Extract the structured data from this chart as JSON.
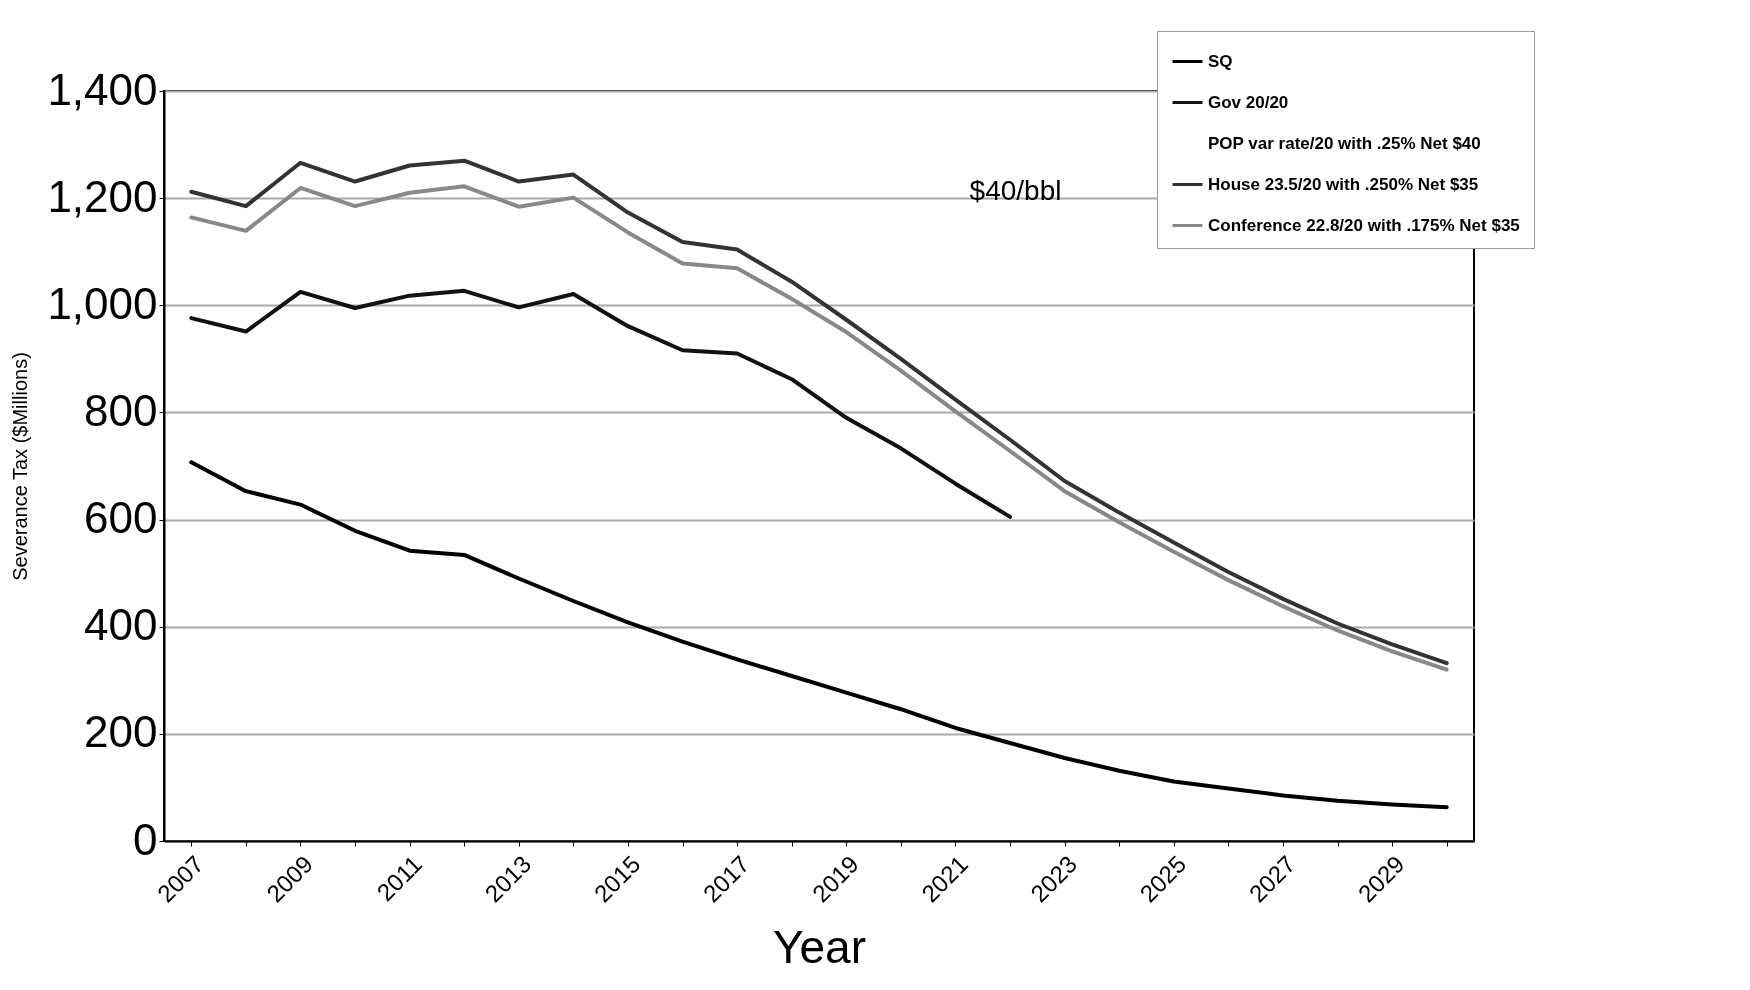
{
  "chart_data": {
    "type": "line",
    "xlabel": "Year",
    "ylabel": "Severance Tax ($Millions)",
    "annotations": [
      "$40/bbl"
    ],
    "categories": [
      "2007",
      null,
      "2009",
      null,
      "2011",
      null,
      "2013",
      null,
      "2015",
      null,
      "2017",
      null,
      "2019",
      null,
      "2021",
      null,
      "2023",
      null,
      "2025",
      null,
      "2027",
      null,
      "2029",
      null
    ],
    "series": [
      {
        "name": "SQ",
        "color": "#000000",
        "values": [
          707,
          653,
          628,
          579,
          542,
          534,
          490,
          448,
          408,
          372,
          339,
          308,
          277,
          246,
          211,
          183,
          155,
          131,
          111,
          98,
          85,
          75,
          68,
          63
        ]
      },
      {
        "name": "Gov 20/20",
        "color": "#111111",
        "values": [
          976,
          951,
          1025,
          995,
          1018,
          1027,
          996,
          1021,
          961,
          916,
          910,
          862,
          790,
          733,
          667,
          605,
          null,
          null,
          null,
          null,
          null,
          null,
          null,
          null
        ]
      },
      {
        "name": "POP var rate/20 with .25% Net $40",
        "values": [
          null,
          null,
          null,
          null,
          null,
          null,
          null,
          null,
          null,
          null,
          null,
          null,
          null,
          null,
          null,
          null,
          null,
          null,
          null,
          null,
          null,
          null,
          null,
          null
        ]
      },
      {
        "name": "House 23.5/20 with .250% Net $35",
        "color": "#333333",
        "values": [
          1212,
          1185,
          1266,
          1231,
          1261,
          1270,
          1231,
          1244,
          1173,
          1118,
          1104,
          1044,
          973,
          900,
          824,
          749,
          672,
          613,
          557,
          502,
          452,
          406,
          367,
          332
        ]
      },
      {
        "name": "Conference 22.8/20 with .175% Net $35",
        "color": "#888888",
        "values": [
          1164,
          1139,
          1219,
          1185,
          1210,
          1222,
          1184,
          1201,
          1136,
          1078,
          1069,
          1012,
          950,
          878,
          802,
          728,
          653,
          595,
          540,
          487,
          438,
          393,
          354,
          320
        ]
      }
    ],
    "ylim": [
      0,
      1400
    ],
    "yticks": [
      0,
      200,
      400,
      600,
      800,
      {
        "value": 1000,
        "label": "1,000"
      },
      {
        "value": 1200,
        "label": "1,200"
      },
      {
        "value": 1400,
        "label": "1,400"
      }
    ],
    "grid": "y",
    "legend": "top right",
    "marker": "none",
    "line_style": "solid"
  }
}
